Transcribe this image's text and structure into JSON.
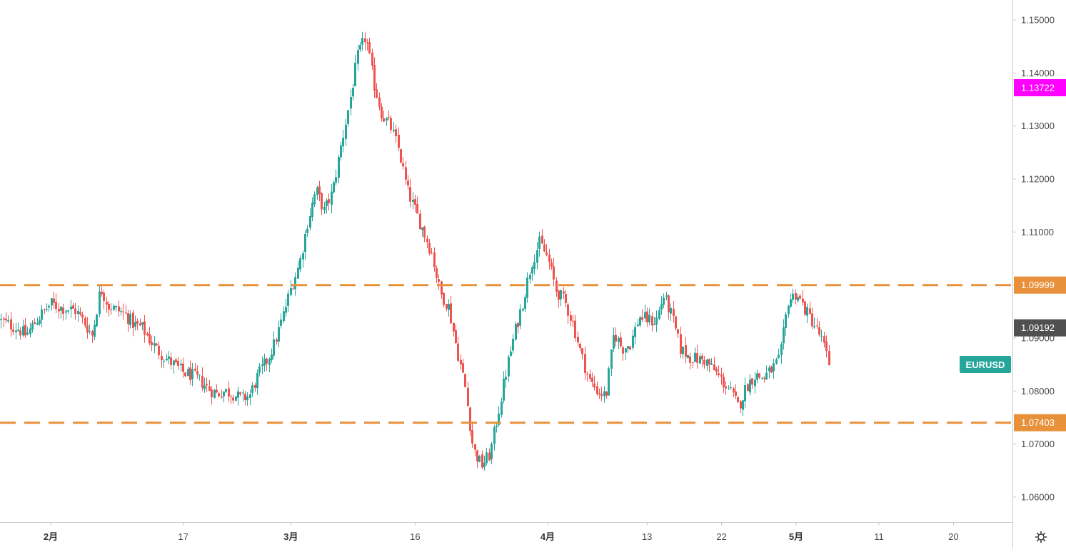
{
  "chart_data": {
    "type": "candlestick",
    "symbol": "EURUSD",
    "colors": {
      "up": "#26a69a",
      "down": "#ef5350",
      "level_line": "#e8913a",
      "price_badge": "#505050",
      "magenta_badge": "#ff00ff",
      "symbol_label_bg": "#26a69a",
      "axis_line": "#c8c8c8"
    },
    "y_axis": {
      "range": [
        1.0555,
        1.1547
      ],
      "ticks": [
        "1.15000",
        "1.14000",
        "1.13000",
        "1.12000",
        "1.11000",
        "1.10000",
        "1.09000",
        "1.08000",
        "1.07000",
        "1.06000"
      ]
    },
    "x_axis": {
      "labels": [
        {
          "text": "2月",
          "bold": true,
          "date": "2020-02-01"
        },
        {
          "text": "17",
          "bold": false,
          "date": "2020-02-17"
        },
        {
          "text": "3月",
          "bold": true,
          "date": "2020-03-01"
        },
        {
          "text": "16",
          "bold": false,
          "date": "2020-03-16"
        },
        {
          "text": "4月",
          "bold": true,
          "date": "2020-04-01"
        },
        {
          "text": "13",
          "bold": false,
          "date": "2020-04-13"
        },
        {
          "text": "22",
          "bold": false,
          "date": "2020-04-22"
        },
        {
          "text": "5月",
          "bold": true,
          "date": "2020-05-01"
        },
        {
          "text": "11",
          "bold": false,
          "date": "2020-05-11"
        },
        {
          "text": "20",
          "bold": false,
          "date": "2020-05-20"
        }
      ],
      "range": [
        "2020-01-26",
        "2020-05-30"
      ]
    },
    "level_lines": [
      {
        "value": 1.09999,
        "label": "1.09999"
      },
      {
        "value": 1.07403,
        "label": "1.07403"
      }
    ],
    "price_badges": [
      {
        "value": 1.13722,
        "label": "1.13722",
        "style": "magenta"
      },
      {
        "value": 1.09192,
        "label": "1.09192",
        "style": "dark"
      }
    ],
    "path": [
      [
        "2020-01-26",
        1.0932
      ],
      [
        "2020-01-28",
        1.0918
      ],
      [
        "2020-01-29",
        1.0905
      ],
      [
        "2020-01-30",
        1.0928
      ],
      [
        "2020-01-31",
        1.0948
      ],
      [
        "2020-02-01",
        1.0965
      ],
      [
        "2020-02-02",
        1.0958
      ],
      [
        "2020-02-04",
        1.0952
      ],
      [
        "2020-02-05",
        1.093
      ],
      [
        "2020-02-06",
        1.0905
      ],
      [
        "2020-02-07",
        1.0995
      ],
      [
        "2020-02-08",
        1.096
      ],
      [
        "2020-02-10",
        1.0945
      ],
      [
        "2020-02-11",
        1.0925
      ],
      [
        "2020-02-12",
        1.092
      ],
      [
        "2020-02-13",
        1.0895
      ],
      [
        "2020-02-14",
        1.0875
      ],
      [
        "2020-02-15",
        1.086
      ],
      [
        "2020-02-16",
        1.0848
      ],
      [
        "2020-02-17",
        1.0835
      ],
      [
        "2020-02-18",
        1.083
      ],
      [
        "2020-02-19",
        1.082
      ],
      [
        "2020-02-20",
        1.0805
      ],
      [
        "2020-02-21",
        1.0795
      ],
      [
        "2020-02-22",
        1.08
      ],
      [
        "2020-02-23",
        1.0795
      ],
      [
        "2020-02-24",
        1.0785
      ],
      [
        "2020-02-25",
        1.0792
      ],
      [
        "2020-02-26",
        1.083
      ],
      [
        "2020-02-27",
        1.0855
      ],
      [
        "2020-02-28",
        1.089
      ],
      [
        "2020-02-29",
        1.094
      ],
      [
        "2020-03-01",
        1.0995
      ],
      [
        "2020-03-02",
        1.104
      ],
      [
        "2020-03-03",
        1.112
      ],
      [
        "2020-03-04",
        1.118
      ],
      [
        "2020-03-05",
        1.114
      ],
      [
        "2020-03-06",
        1.1175
      ],
      [
        "2020-03-07",
        1.126
      ],
      [
        "2020-03-08",
        1.134
      ],
      [
        "2020-03-09",
        1.143
      ],
      [
        "2020-03-10",
        1.147
      ],
      [
        "2020-03-11",
        1.138
      ],
      [
        "2020-03-12",
        1.132
      ],
      [
        "2020-03-13",
        1.13
      ],
      [
        "2020-03-14",
        1.1255
      ],
      [
        "2020-03-15",
        1.118
      ],
      [
        "2020-03-16",
        1.114
      ],
      [
        "2020-03-17",
        1.11
      ],
      [
        "2020-03-18",
        1.106
      ],
      [
        "2020-03-19",
        1.0985
      ],
      [
        "2020-03-20",
        1.096
      ],
      [
        "2020-03-21",
        1.088
      ],
      [
        "2020-03-22",
        1.081
      ],
      [
        "2020-03-23",
        1.069
      ],
      [
        "2020-03-24",
        1.066
      ],
      [
        "2020-03-25",
        1.068
      ],
      [
        "2020-03-26",
        1.076
      ],
      [
        "2020-03-27",
        1.084
      ],
      [
        "2020-03-28",
        1.091
      ],
      [
        "2020-03-29",
        1.097
      ],
      [
        "2020-03-30",
        1.104
      ],
      [
        "2020-03-31",
        1.108
      ],
      [
        "2020-04-01",
        1.105
      ],
      [
        "2020-04-02",
        1.099
      ],
      [
        "2020-04-03",
        1.097
      ],
      [
        "2020-04-04",
        1.093
      ],
      [
        "2020-04-05",
        1.087
      ],
      [
        "2020-04-06",
        1.082
      ],
      [
        "2020-04-07",
        1.08
      ],
      [
        "2020-04-08",
        1.079
      ],
      [
        "2020-04-09",
        1.091
      ],
      [
        "2020-04-10",
        1.088
      ],
      [
        "2020-04-11",
        1.089
      ],
      [
        "2020-04-12",
        1.094
      ],
      [
        "2020-04-13",
        1.0935
      ],
      [
        "2020-04-14",
        1.093
      ],
      [
        "2020-04-15",
        1.098
      ],
      [
        "2020-04-16",
        1.094
      ],
      [
        "2020-04-17",
        1.088
      ],
      [
        "2020-04-18",
        1.0865
      ],
      [
        "2020-04-19",
        1.086
      ],
      [
        "2020-04-20",
        1.0858
      ],
      [
        "2020-04-21",
        1.084
      ],
      [
        "2020-04-22",
        1.082
      ],
      [
        "2020-04-23",
        1.08
      ],
      [
        "2020-04-24",
        1.077
      ],
      [
        "2020-04-25",
        1.081
      ],
      [
        "2020-04-26",
        1.083
      ],
      [
        "2020-04-27",
        1.0825
      ],
      [
        "2020-04-28",
        1.084
      ],
      [
        "2020-04-29",
        1.086
      ],
      [
        "2020-04-30",
        1.097
      ],
      [
        "2020-05-01",
        1.0985
      ],
      [
        "2020-05-02",
        1.0955
      ],
      [
        "2020-05-03",
        1.093
      ],
      [
        "2020-05-04",
        1.09
      ],
      [
        "2020-05-05",
        1.0848
      ]
    ]
  }
}
